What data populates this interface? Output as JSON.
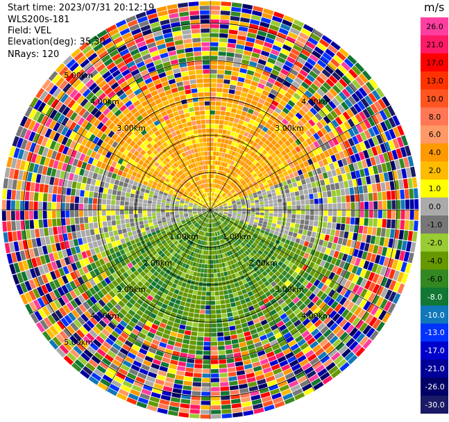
{
  "header": {
    "start_time": "Start time: 2023/07/31 20:12:19",
    "instrument": "WLS200s-181",
    "field": "Field: VEL",
    "elevation": "Elevation(deg): 35.30",
    "nrays": "NRays: 120"
  },
  "colorbar": {
    "unit": "m/s",
    "ticks": [
      "26.0",
      "21.0",
      "17.0",
      "13.0",
      "10.0",
      "8.0",
      "6.0",
      "4.0",
      "2.0",
      "1.0",
      "0.0",
      "-1.0",
      "-2.0",
      "-4.0",
      "-6.0",
      "-8.0",
      "-10.0",
      "-13.0",
      "-17.0",
      "-21.0",
      "-26.0",
      "-30.0"
    ],
    "colors": [
      "#ff3fa0",
      "#ff1a66",
      "#ff0000",
      "#ff3300",
      "#ff5522",
      "#ff7755",
      "#ff9966",
      "#ff9900",
      "#ffbb00",
      "#ffff00",
      "#aaaaaa",
      "#777777",
      "#99cc33",
      "#669900",
      "#338822",
      "#117733",
      "#1177bb",
      "#0033ff",
      "#0000cc",
      "#000099",
      "#000066",
      "#1a1a66"
    ],
    "light_text_from_index": 15
  },
  "chart_data": {
    "type": "heatmap",
    "plot_type": "PPI (plan position indicator)",
    "field": "VEL",
    "unit": "m/s",
    "nrays": 120,
    "elevation_deg": 35.3,
    "range_rings_km": [
      1.0,
      2.0,
      3.0,
      4.0,
      5.0
    ],
    "range_ring_labels": {
      "upper_left": [
        "5.00km",
        "4.00km",
        "3.00km"
      ],
      "upper_right": [
        "4.00km",
        "3.00km"
      ],
      "inner": [
        "1.00km",
        "1.00km",
        "2.00km",
        "2.00km"
      ],
      "lower_left": [
        "3.00km",
        "4.00km",
        "5.00km"
      ],
      "lower_right": [
        "3.00km",
        "4.00km"
      ]
    },
    "azimuth_lines_deg": [
      0,
      30,
      60,
      90,
      120,
      150,
      180,
      210,
      240,
      270,
      300,
      330
    ],
    "velocity_pattern": {
      "north_inner_sector": "positive 2 to 8 m/s (yellow/orange)",
      "south_inner_sector": "negative -2 to -8 m/s (green)",
      "east_west_inner": "near 0 m/s (gray)",
      "outer_ranges": "noisy, full scale -30 to 26 m/s"
    }
  }
}
